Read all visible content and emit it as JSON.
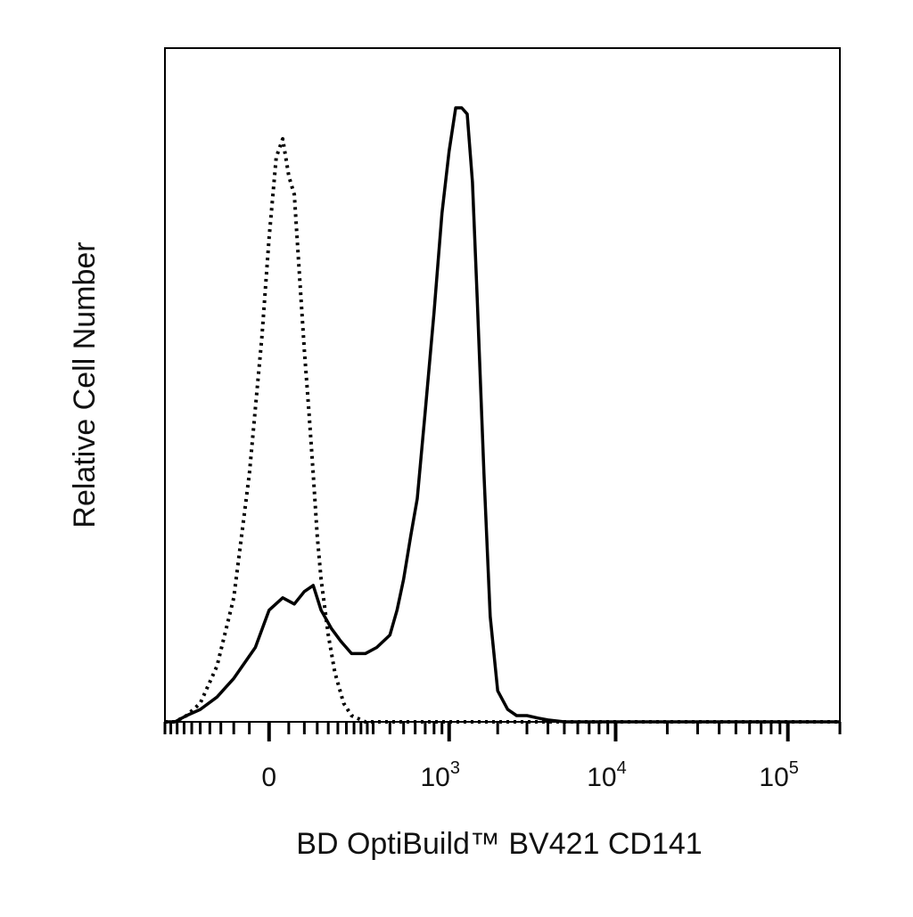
{
  "chart_data": {
    "type": "line",
    "xlabel": "BD OptiBuild™ BV421 CD141",
    "ylabel": "Relative Cell Number",
    "x_scale": "biexponential",
    "xlim": [
      -300,
      200000
    ],
    "ylim": [
      0,
      100
    ],
    "grid": false,
    "legend": "none",
    "x_ticks": [
      {
        "value": 0,
        "base": "0",
        "exp": ""
      },
      {
        "value": 1000,
        "base": "10",
        "exp": "3"
      },
      {
        "value": 10000,
        "base": "10",
        "exp": "4"
      },
      {
        "value": 100000,
        "base": "10",
        "exp": "5"
      }
    ],
    "series": [
      {
        "style": "solid",
        "color": "#000000",
        "x": [
          -300,
          -250,
          -200,
          -150,
          -100,
          -60,
          -20,
          0,
          20,
          40,
          60,
          80,
          100,
          130,
          160,
          200,
          260,
          320,
          400,
          450,
          500,
          560,
          620,
          700,
          800,
          900,
          1000,
          1100,
          1200,
          1300,
          1400,
          1500,
          1650,
          1800,
          2000,
          2300,
          2600,
          3000,
          3500,
          4000,
          5000,
          6000,
          8000,
          10000,
          20000,
          50000,
          100000,
          200000
        ],
        "y": [
          0,
          0,
          1,
          2,
          4,
          7,
          12,
          18,
          20,
          19,
          21,
          22,
          18,
          15,
          13,
          11,
          11,
          12,
          14,
          18,
          23,
          30,
          36,
          50,
          66,
          82,
          92,
          99,
          99,
          98,
          87,
          68,
          40,
          17,
          5,
          2,
          1,
          1,
          0.6,
          0.3,
          0,
          0,
          0,
          0,
          0,
          0,
          0,
          0
        ]
      },
      {
        "style": "dotted",
        "color": "#000000",
        "x": [
          -300,
          -250,
          -200,
          -150,
          -100,
          -60,
          -30,
          -10,
          0,
          10,
          20,
          30,
          40,
          50,
          60,
          70,
          80,
          90,
          100,
          120,
          140,
          170,
          200,
          260,
          320,
          400,
          500,
          1000,
          200000
        ],
        "y": [
          0,
          0,
          1,
          3,
          9,
          20,
          40,
          62,
          78,
          91,
          94,
          88,
          85,
          72,
          60,
          50,
          40,
          30,
          23,
          14,
          8,
          3,
          1,
          0,
          0,
          0,
          0,
          0,
          0
        ]
      }
    ]
  }
}
